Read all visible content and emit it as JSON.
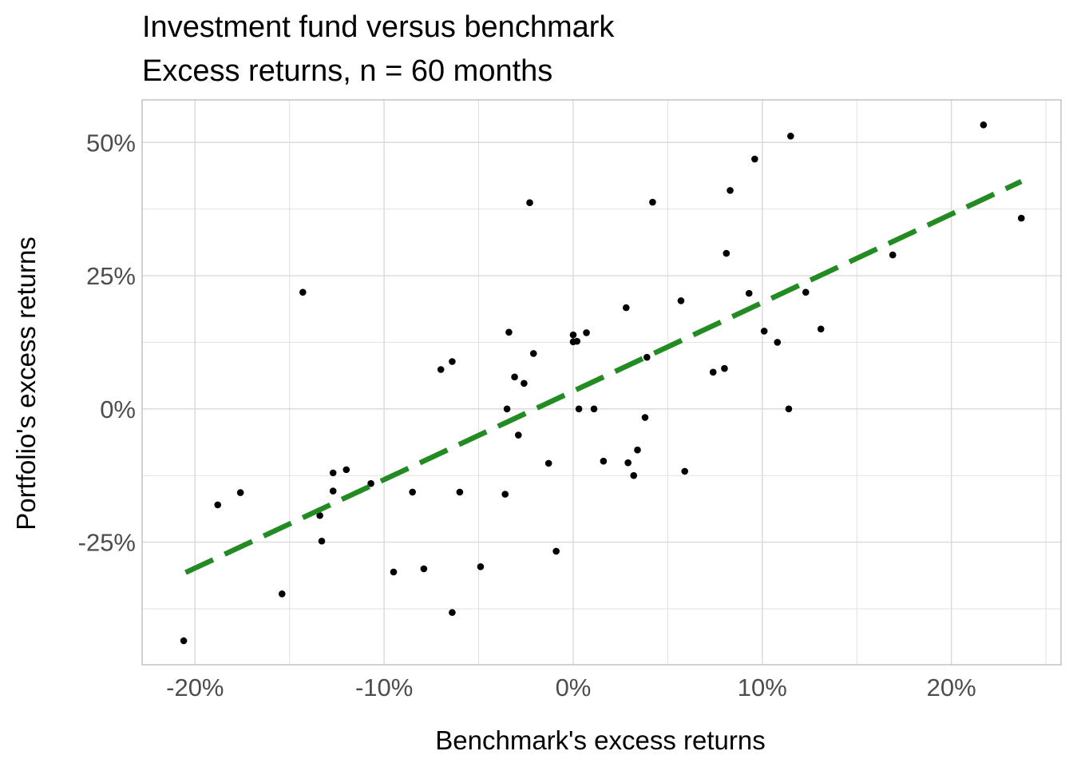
{
  "chart_data": {
    "type": "scatter",
    "title": "Investment fund versus benchmark",
    "subtitle": "Excess returns, n = 60 months",
    "xlabel": "Benchmark's excess returns",
    "ylabel": "Portfolio's excess returns",
    "xlim": [
      -0.228,
      0.258
    ],
    "ylim": [
      -0.48,
      0.58
    ],
    "x_ticks": [
      -0.2,
      -0.1,
      0.0,
      0.1,
      0.2
    ],
    "x_tick_labels": [
      "-20%",
      "-10%",
      "0%",
      "10%",
      "20%"
    ],
    "y_ticks": [
      -0.25,
      0.0,
      0.25,
      0.5
    ],
    "y_tick_labels": [
      "-25%",
      "0%",
      "25%",
      "50%"
    ],
    "grid": true,
    "legend": "none",
    "colors": {
      "points": "#000000",
      "fit_line": "#228B22",
      "grid": "#d9d9d9",
      "panel_border": "#b3b3b3",
      "tick_text": "#4d4d4d"
    },
    "series": [
      {
        "kind": "points",
        "x": [
          -0.206,
          -0.188,
          -0.176,
          -0.154,
          -0.143,
          -0.134,
          -0.133,
          -0.127,
          -0.127,
          -0.12,
          -0.107,
          -0.095,
          -0.085,
          -0.079,
          -0.07,
          -0.064,
          -0.064,
          -0.06,
          -0.049,
          -0.036,
          -0.035,
          -0.034,
          -0.031,
          -0.029,
          -0.026,
          -0.023,
          -0.021,
          -0.013,
          -0.009,
          0.0,
          0.0,
          0.002,
          0.003,
          0.007,
          0.011,
          0.016,
          0.028,
          0.029,
          0.032,
          0.034,
          0.038,
          0.039,
          0.042,
          0.057,
          0.059,
          0.074,
          0.08,
          0.081,
          0.083,
          0.093,
          0.096,
          0.101,
          0.108,
          0.114,
          0.115,
          0.123,
          0.131,
          0.169,
          0.217,
          0.237
        ],
        "y": [
          -0.435,
          -0.18,
          -0.157,
          -0.347,
          0.219,
          -0.2,
          -0.248,
          -0.12,
          -0.154,
          -0.114,
          -0.14,
          -0.306,
          -0.156,
          -0.3,
          0.074,
          -0.382,
          0.089,
          -0.156,
          -0.296,
          -0.16,
          0.0,
          0.144,
          0.06,
          -0.049,
          0.048,
          0.387,
          0.104,
          -0.102,
          -0.267,
          0.139,
          0.126,
          0.127,
          0.0,
          0.143,
          0.0,
          -0.098,
          0.19,
          -0.101,
          -0.125,
          -0.077,
          -0.016,
          0.097,
          0.388,
          0.203,
          -0.117,
          0.069,
          0.076,
          0.292,
          0.41,
          0.217,
          0.469,
          0.146,
          0.125,
          0.0,
          0.512,
          0.219,
          0.15,
          0.289,
          0.533,
          0.358
        ]
      },
      {
        "kind": "fit_line",
        "style": "dashed",
        "x": [
          -0.205,
          0.237
        ],
        "y": [
          -0.307,
          0.427
        ]
      }
    ]
  }
}
